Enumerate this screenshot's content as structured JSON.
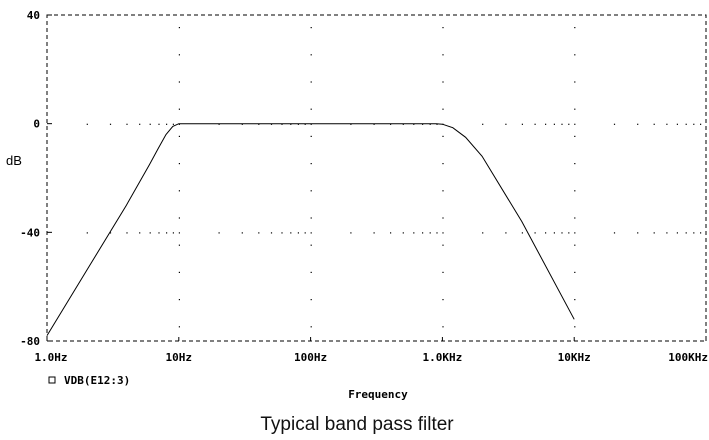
{
  "caption": "Typical band pass filter",
  "chart_data": {
    "type": "line",
    "xscale": "log",
    "xlim": [
      1,
      100000
    ],
    "ylim": [
      -80,
      40
    ],
    "xlabel": "Frequency",
    "ylabel": "dB",
    "xticks": [
      {
        "value": 1,
        "label": "1.0Hz"
      },
      {
        "value": 10,
        "label": "10Hz"
      },
      {
        "value": 100,
        "label": "100Hz"
      },
      {
        "value": 1000,
        "label": "1.0KHz"
      },
      {
        "value": 10000,
        "label": "10KHz"
      },
      {
        "value": 100000,
        "label": "100KHz"
      }
    ],
    "yticks": [
      {
        "value": 40,
        "label": "40"
      },
      {
        "value": 0,
        "label": "0"
      },
      {
        "value": -40,
        "label": "-40"
      },
      {
        "value": -80,
        "label": "-80"
      }
    ],
    "grid": "dotted",
    "legend": {
      "position": "bottom-left",
      "marker": "square-icon"
    },
    "series": [
      {
        "name": "VDB(E12:3)",
        "color": "#000000",
        "points": [
          [
            1,
            -78
          ],
          [
            2,
            -54
          ],
          [
            4,
            -30
          ],
          [
            6,
            -15
          ],
          [
            7,
            -9
          ],
          [
            8,
            -4
          ],
          [
            9,
            -1
          ],
          [
            10,
            0
          ],
          [
            20,
            0
          ],
          [
            100,
            0
          ],
          [
            500,
            0
          ],
          [
            900,
            0
          ],
          [
            1000,
            -0.2
          ],
          [
            1200,
            -1.5
          ],
          [
            1500,
            -5
          ],
          [
            2000,
            -12
          ],
          [
            4000,
            -36
          ],
          [
            10000,
            -72
          ]
        ]
      }
    ]
  }
}
